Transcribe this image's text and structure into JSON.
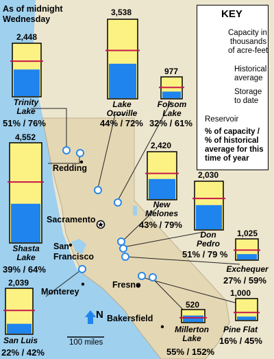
{
  "title": {
    "line1": "As of midnight",
    "line2": "Wednesday"
  },
  "colors": {
    "capacity": "#fbf283",
    "storage": "#1f84ee",
    "historical_line": "#c8154c",
    "land": "#eae2c9",
    "water": "#9fd0ee",
    "marker": "#2a88e8"
  },
  "reservoirs": [
    {
      "name": "Trinity Lake",
      "name_lines": [
        "Trinity",
        "Lake"
      ],
      "capacity_label": "2,448",
      "capacity": 2448,
      "storage_fraction": 0.51,
      "historical_fraction": 0.67,
      "percent_text": "51% / 76%"
    },
    {
      "name": "Lake Oroville",
      "name_lines": [
        "Lake",
        "Oroville"
      ],
      "capacity_label": "3,538",
      "capacity": 3538,
      "storage_fraction": 0.44,
      "historical_fraction": 0.61,
      "percent_text": "44% / 72%"
    },
    {
      "name": "Folsom Lake",
      "name_lines": [
        "Folsom",
        "Lake"
      ],
      "capacity_label": "977",
      "capacity": 977,
      "storage_fraction": 0.32,
      "historical_fraction": 0.52,
      "percent_text": "32% / 61%"
    },
    {
      "name": "Shasta Lake",
      "name_lines": [
        "Shasta",
        "Lake"
      ],
      "capacity_label": "4,552",
      "capacity": 4552,
      "storage_fraction": 0.39,
      "historical_fraction": 0.61,
      "percent_text": "39% / 64%"
    },
    {
      "name": "New Melones",
      "name_lines": [
        "New",
        "Melones"
      ],
      "capacity_label": "2,420",
      "capacity": 2420,
      "storage_fraction": 0.43,
      "historical_fraction": 0.55,
      "percent_text": "43% / 79%"
    },
    {
      "name": "Don Pedro",
      "name_lines": [
        "Don",
        "Pedro"
      ],
      "capacity_label": "2,030",
      "capacity": 2030,
      "storage_fraction": 0.51,
      "historical_fraction": 0.65,
      "percent_text": "51% / 79 %"
    },
    {
      "name": "Exchequer",
      "name_lines": [
        "Exchequer"
      ],
      "capacity_label": "1,025",
      "capacity": 1025,
      "storage_fraction": 0.27,
      "historical_fraction": 0.47,
      "percent_text": "27% / 59%"
    },
    {
      "name": "San Luis",
      "name_lines": [
        "San Luis"
      ],
      "capacity_label": "2,039",
      "capacity": 2039,
      "storage_fraction": 0.22,
      "historical_fraction": 0.52,
      "percent_text": "22% / 42%"
    },
    {
      "name": "Millerton Lake",
      "name_lines": [
        "Millerton",
        "Lake"
      ],
      "capacity_label": "520",
      "capacity": 520,
      "storage_fraction": 0.55,
      "historical_fraction": 0.36,
      "percent_text": "55% / 152%"
    },
    {
      "name": "Pine Flat",
      "name_lines": [
        "Pine Flat"
      ],
      "capacity_label": "1,000",
      "capacity": 1000,
      "storage_fraction": 0.16,
      "historical_fraction": 0.36,
      "percent_text": "16% / 45%"
    }
  ],
  "cities": {
    "redding": "Redding",
    "sacramento": "Sacramento",
    "san_francisco_1": "San",
    "san_francisco_2": "Francisco",
    "monterey": "Monterey",
    "fresno": "Fresno",
    "bakersfield": "Bakersfield"
  },
  "compass": {
    "letter": "N",
    "scale_label": "100 miles"
  },
  "key": {
    "title": "KEY",
    "capacity_text": [
      "Capacity in",
      "thousands",
      "of acre-feet"
    ],
    "historical_text": [
      "Historical",
      "average"
    ],
    "storage_text": [
      "Storage",
      "to date"
    ],
    "reservoir_label": "Reservoir",
    "percent_text": [
      "% of capacity /",
      "% of historical",
      "average for this",
      "time of year"
    ]
  }
}
